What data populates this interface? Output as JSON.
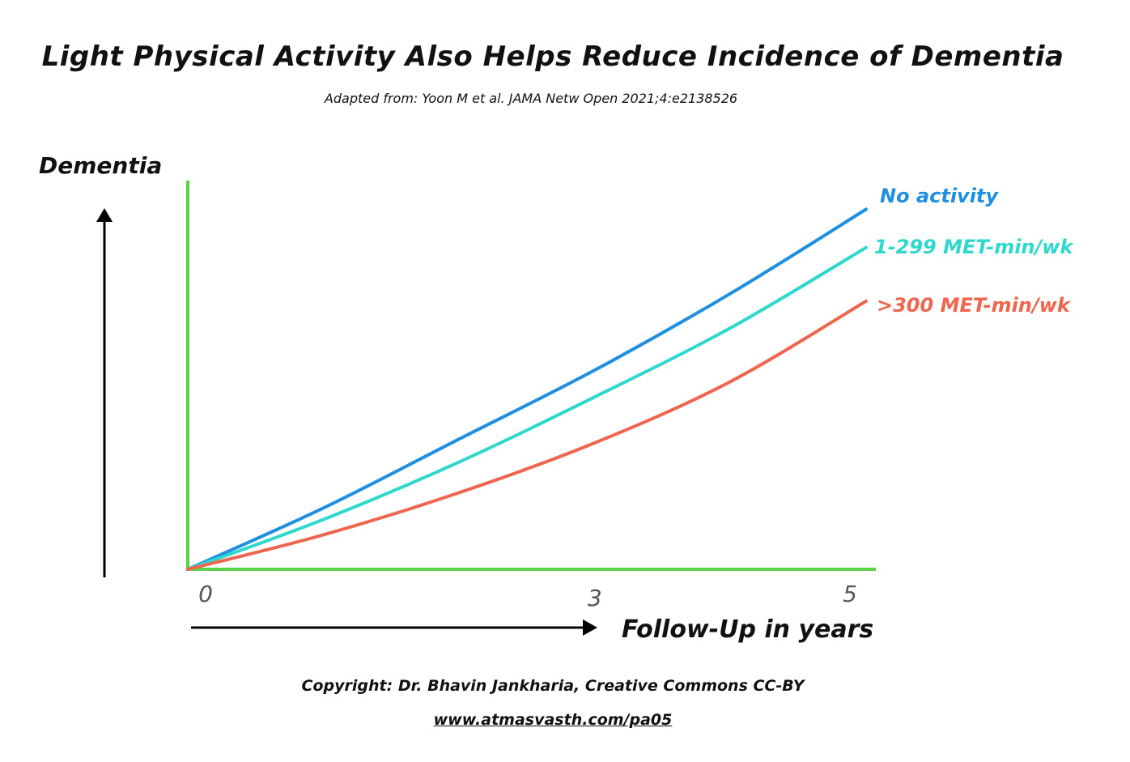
{
  "chart_data": {
    "type": "line",
    "title": "Light Physical Activity Also Helps Reduce Incidence of Dementia",
    "subtitle": "Adapted from: Yoon M et al. JAMA Netw Open 2021;4:e2138526",
    "ylabel": "Dementia",
    "xlabel": "Follow-Up in years",
    "x_ticks": [
      "0",
      "3",
      "5"
    ],
    "xlim": [
      0,
      5.2
    ],
    "ylim": [
      0,
      1.0
    ],
    "grid": false,
    "series": [
      {
        "name": "No activity",
        "color": "#1f8fe0",
        "x": [
          0,
          1,
          2,
          3,
          4,
          5
        ],
        "y": [
          0,
          0.16,
          0.34,
          0.52,
          0.72,
          0.94
        ]
      },
      {
        "name": "1-299 MET-min/wk",
        "color": "#2ed8cc",
        "x": [
          0,
          1,
          2,
          3,
          4,
          5
        ],
        "y": [
          0,
          0.13,
          0.28,
          0.45,
          0.63,
          0.84
        ]
      },
      {
        "name": ">300 MET-min/wk",
        "color": "#ee6650",
        "x": [
          0,
          1,
          2,
          3,
          4,
          5
        ],
        "y": [
          0,
          0.09,
          0.2,
          0.33,
          0.49,
          0.7
        ]
      }
    ],
    "axis_color": "#5bd24a"
  },
  "footer": {
    "copyright": "Copyright: Dr. Bhavin Jankharia, Creative Commons CC-BY",
    "link": "www.atmasvasth.com/pa05"
  }
}
